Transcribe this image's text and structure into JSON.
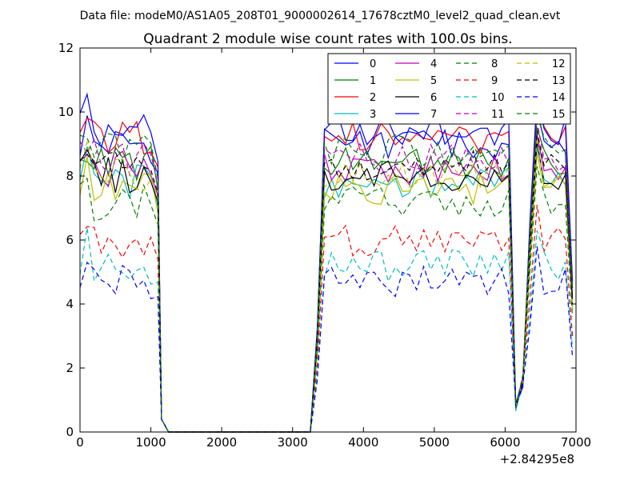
{
  "header": {
    "data_file": "Data file: modeM0/AS1A05_208T01_9000002614_17678cztM0_level2_quad_clean.evt"
  },
  "chart_data": {
    "type": "line",
    "title": "Quadrant 2 module wise count rates with 100.0s bins.",
    "xlabel": "",
    "ylabel": "",
    "x_offset_label": "+2.84295e8",
    "xlim": [
      0,
      7000
    ],
    "ylim": [
      0,
      12
    ],
    "x_ticks": [
      0,
      1000,
      2000,
      3000,
      4000,
      5000,
      6000,
      7000
    ],
    "y_ticks": [
      0,
      2,
      4,
      6,
      8,
      10,
      12
    ],
    "grid": false,
    "legend_position": "top-right",
    "legend_columns": 4,
    "gap_start": 1250,
    "gap_end": 3250,
    "x_seg1_start": 0,
    "x_seg1_end": 1250,
    "x_seg2_start": 3250,
    "x_seg2_end": 6950,
    "series": [
      {
        "name": "0",
        "color": "#0000ff",
        "dash": "solid",
        "level": 9.0
      },
      {
        "name": "1",
        "color": "#008000",
        "dash": "solid",
        "level": 8.4
      },
      {
        "name": "2",
        "color": "#ff0000",
        "dash": "solid",
        "level": 9.2
      },
      {
        "name": "3",
        "color": "#00bfbf",
        "dash": "solid",
        "level": 7.8
      },
      {
        "name": "4",
        "color": "#bf00bf",
        "dash": "solid",
        "level": 8.2
      },
      {
        "name": "5",
        "color": "#bfbf00",
        "dash": "solid",
        "level": 7.6
      },
      {
        "name": "6",
        "color": "#000000",
        "dash": "solid",
        "level": 8.0
      },
      {
        "name": "7",
        "color": "#0000ff",
        "dash": "solid",
        "level": 9.4
      },
      {
        "name": "8",
        "color": "#008000",
        "dash": "dashed",
        "level": 7.2
      },
      {
        "name": "9",
        "color": "#ff0000",
        "dash": "dashed",
        "level": 6.0
      },
      {
        "name": "10",
        "color": "#00bfbf",
        "dash": "dashed",
        "level": 5.2
      },
      {
        "name": "11",
        "color": "#bf00bf",
        "dash": "dashed",
        "level": 8.6
      },
      {
        "name": "12",
        "color": "#bfbf00",
        "dash": "dashed",
        "level": 8.1
      },
      {
        "name": "13",
        "color": "#000000",
        "dash": "dashed",
        "level": 8.3
      },
      {
        "name": "14",
        "color": "#0000ff",
        "dash": "dashed",
        "level": 4.7
      },
      {
        "name": "15",
        "color": "#008000",
        "dash": "dashed",
        "level": 8.8
      }
    ]
  }
}
